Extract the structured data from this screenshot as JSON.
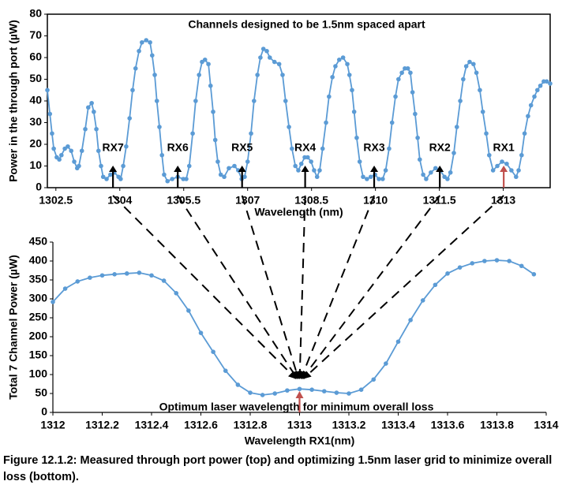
{
  "chart_data": [
    {
      "type": "line",
      "title": "Channels designed to be 1.5nm spaced apart",
      "xlabel": "Wavelength (nm)",
      "ylabel": "Power in the through port (µW)",
      "color": "#5b9bd5",
      "xlim": [
        1302.3,
        1314.1
      ],
      "xticks": [
        1302.5,
        1304,
        1305.5,
        1307,
        1308.5,
        1310,
        1311.5,
        1313
      ],
      "ylim": [
        0,
        80
      ],
      "yticks": [
        0,
        10,
        20,
        30,
        40,
        50,
        60,
        70,
        80
      ],
      "x": [
        1302.3,
        1302.36,
        1302.41,
        1302.45,
        1302.52,
        1302.58,
        1302.63,
        1302.71,
        1302.78,
        1302.86,
        1302.93,
        1303.0,
        1303.04,
        1303.11,
        1303.19,
        1303.26,
        1303.34,
        1303.39,
        1303.45,
        1303.5,
        1303.56,
        1303.61,
        1303.69,
        1303.78,
        1303.87,
        1303.97,
        1304.02,
        1304.08,
        1304.15,
        1304.23,
        1304.3,
        1304.37,
        1304.45,
        1304.52,
        1304.62,
        1304.71,
        1304.76,
        1304.82,
        1304.87,
        1304.93,
        1304.99,
        1305.04,
        1305.12,
        1305.23,
        1305.36,
        1305.49,
        1305.56,
        1305.63,
        1305.71,
        1305.78,
        1305.86,
        1305.93,
        1306.0,
        1306.08,
        1306.13,
        1306.19,
        1306.24,
        1306.3,
        1306.37,
        1306.45,
        1306.56,
        1306.69,
        1306.78,
        1306.86,
        1306.93,
        1307.0,
        1307.08,
        1307.15,
        1307.23,
        1307.3,
        1307.37,
        1307.45,
        1307.52,
        1307.63,
        1307.74,
        1307.82,
        1307.89,
        1307.97,
        1308.04,
        1308.12,
        1308.19,
        1308.26,
        1308.34,
        1308.41,
        1308.49,
        1308.56,
        1308.63,
        1308.69,
        1308.76,
        1308.84,
        1308.91,
        1308.99,
        1309.06,
        1309.15,
        1309.24,
        1309.34,
        1309.39,
        1309.45,
        1309.5,
        1309.56,
        1309.63,
        1309.71,
        1309.8,
        1309.89,
        1309.99,
        1310.08,
        1310.17,
        1310.24,
        1310.32,
        1310.39,
        1310.47,
        1310.54,
        1310.62,
        1310.69,
        1310.76,
        1310.82,
        1310.87,
        1310.93,
        1310.99,
        1311.04,
        1311.12,
        1311.19,
        1311.3,
        1311.41,
        1311.52,
        1311.62,
        1311.69,
        1311.76,
        1311.84,
        1311.91,
        1311.99,
        1312.06,
        1312.13,
        1312.21,
        1312.3,
        1312.37,
        1312.45,
        1312.52,
        1312.6,
        1312.67,
        1312.76,
        1312.86,
        1312.97,
        1313.08,
        1313.19,
        1313.3,
        1313.36,
        1313.43,
        1313.5,
        1313.58,
        1313.65,
        1313.73,
        1313.8,
        1313.87,
        1313.95,
        1314.02,
        1314.1
      ],
      "values": [
        45,
        34,
        25,
        18,
        14,
        13,
        15,
        18,
        19,
        17,
        12,
        9,
        10,
        17,
        27,
        37,
        39,
        35,
        27,
        17,
        10,
        5,
        4,
        6,
        7,
        5,
        4,
        10,
        19,
        32,
        45,
        55,
        63,
        67,
        68,
        67,
        61,
        52,
        40,
        28,
        15,
        6,
        3,
        4,
        5,
        4,
        4,
        10,
        25,
        40,
        52,
        58,
        59,
        57,
        47,
        35,
        22,
        12,
        6,
        5,
        9,
        10,
        8,
        4,
        5,
        12,
        25,
        40,
        52,
        60,
        64,
        63,
        60,
        58,
        57,
        52,
        40,
        28,
        18,
        10,
        8,
        11,
        14,
        14,
        12,
        8,
        5,
        8,
        18,
        30,
        42,
        51,
        56,
        59,
        60,
        57,
        52,
        45,
        35,
        23,
        12,
        5,
        4,
        5,
        6,
        4,
        4,
        8,
        18,
        30,
        42,
        50,
        53,
        55,
        55,
        53,
        44,
        34,
        23,
        13,
        6,
        4,
        7,
        9,
        8,
        5,
        4,
        7,
        16,
        28,
        40,
        50,
        56,
        58,
        57,
        53,
        45,
        35,
        25,
        15,
        8,
        10,
        12,
        11,
        8,
        5,
        8,
        15,
        25,
        33,
        38,
        42,
        45,
        47,
        49,
        49,
        48
      ],
      "annotations": [
        {
          "label": "RX7",
          "x": 1303.84,
          "color": "#000000"
        },
        {
          "label": "RX6",
          "x": 1305.36,
          "color": "#000000"
        },
        {
          "label": "RX5",
          "x": 1306.87,
          "color": "#000000"
        },
        {
          "label": "RX4",
          "x": 1308.35,
          "color": "#000000"
        },
        {
          "label": "RX3",
          "x": 1309.97,
          "color": "#000000"
        },
        {
          "label": "RX2",
          "x": 1311.51,
          "color": "#000000"
        },
        {
          "label": "RX1",
          "x": 1313.01,
          "color": "#c0504d"
        }
      ]
    },
    {
      "type": "line",
      "xlabel": "Wavelength RX1(nm)",
      "ylabel": "Total 7 Channel Power (µW)",
      "color": "#5b9bd5",
      "xlim": [
        1312,
        1314
      ],
      "xticks": [
        1312,
        1312.2,
        1312.4,
        1312.6,
        1312.8,
        1313,
        1313.2,
        1313.4,
        1313.6,
        1313.8,
        1314
      ],
      "ylim": [
        0,
        450
      ],
      "yticks": [
        0,
        50,
        100,
        150,
        200,
        250,
        300,
        350,
        400,
        450
      ],
      "x": [
        1312.0,
        1312.05,
        1312.1,
        1312.15,
        1312.2,
        1312.25,
        1312.3,
        1312.35,
        1312.4,
        1312.45,
        1312.5,
        1312.55,
        1312.6,
        1312.65,
        1312.7,
        1312.75,
        1312.8,
        1312.85,
        1312.9,
        1312.95,
        1313.0,
        1313.05,
        1313.1,
        1313.15,
        1313.2,
        1313.25,
        1313.3,
        1313.35,
        1313.4,
        1313.45,
        1313.5,
        1313.55,
        1313.6,
        1313.65,
        1313.7,
        1313.75,
        1313.8,
        1313.85,
        1313.9,
        1313.95
      ],
      "values": [
        292,
        327,
        346,
        356,
        362,
        365,
        367,
        369,
        362,
        348,
        315,
        269,
        210,
        160,
        110,
        73,
        52,
        46,
        50,
        58,
        62,
        60,
        56,
        52,
        50,
        60,
        87,
        129,
        187,
        244,
        296,
        337,
        367,
        383,
        394,
        400,
        402,
        400,
        387,
        365
      ],
      "annotations": [
        {
          "label": "Optimum laser wavelength for minimum overall loss",
          "x": 1313,
          "color": "#c0504d"
        }
      ]
    }
  ],
  "caption": "Figure 12.1.2: Measured through port power (top) and optimizing 1.5nm laser grid to minimize overall loss (bottom)."
}
